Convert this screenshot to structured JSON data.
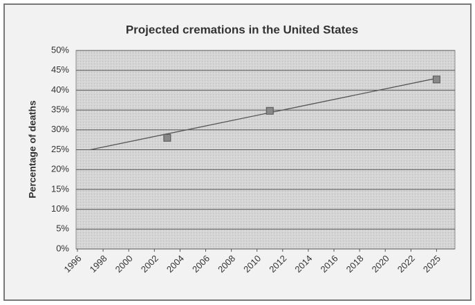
{
  "chart_data": {
    "type": "line",
    "title": "Projected  cremations in the United States",
    "y_label": "Percentage of deaths",
    "series": [
      {
        "x": [
          2003,
          2011,
          2025
        ],
        "values": [
          28,
          34.8,
          42.7
        ],
        "color": "#888888"
      }
    ],
    "trendline": {
      "x": [
        1997,
        2025
      ],
      "values": [
        25,
        43
      ],
      "color": "#555555"
    },
    "xlim": [
      1996,
      2025
    ],
    "xticks": [
      1996,
      1998,
      2000,
      2002,
      2004,
      2006,
      2008,
      2010,
      2012,
      2014,
      2016,
      2018,
      2020,
      2022,
      2025
    ],
    "ylim": [
      0,
      50
    ],
    "yticks": [
      {
        "value": 0,
        "label": "0%"
      },
      {
        "value": 5,
        "label": "5%"
      },
      {
        "value": 10,
        "label": "10%"
      },
      {
        "value": 15,
        "label": "15%"
      },
      {
        "value": 20,
        "label": "20%"
      },
      {
        "value": 25,
        "label": "25%"
      },
      {
        "value": 30,
        "label": "30%"
      },
      {
        "value": 35,
        "label": "35%"
      },
      {
        "value": 40,
        "label": "40%"
      },
      {
        "value": 45,
        "label": "45%"
      },
      {
        "value": 50,
        "label": "50%"
      }
    ],
    "grid": true
  }
}
